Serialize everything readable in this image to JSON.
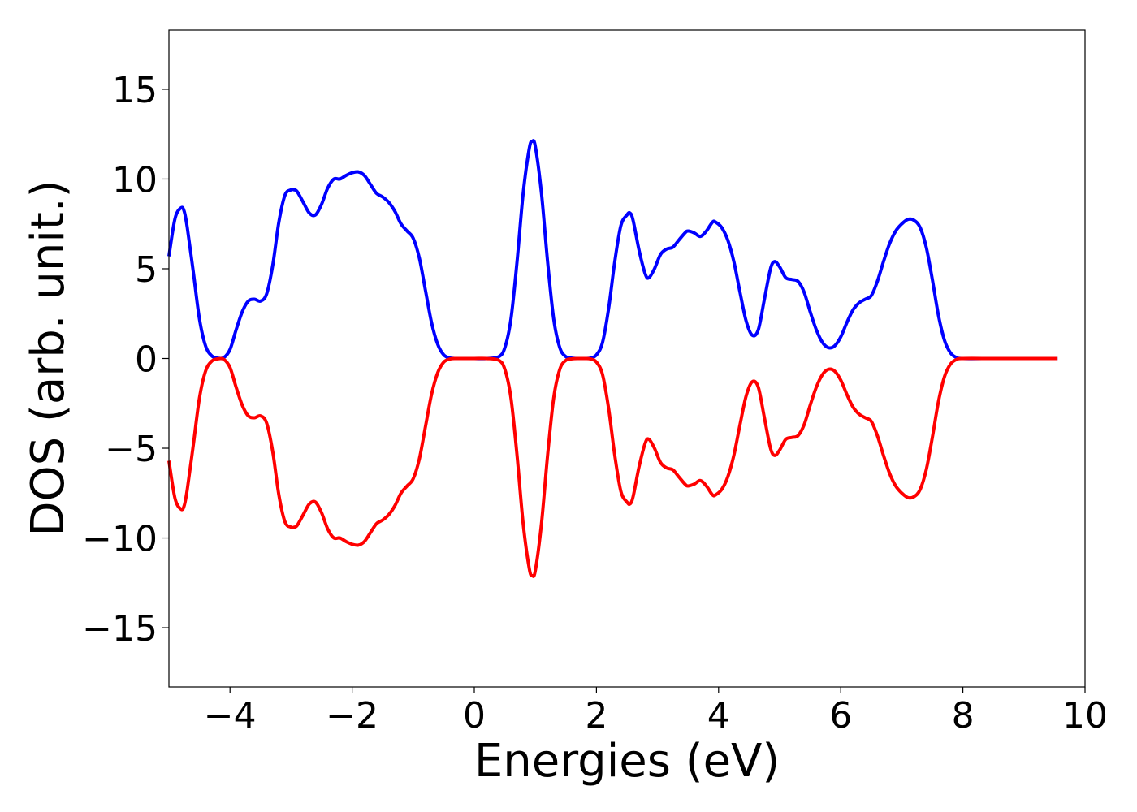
{
  "chart_data": {
    "type": "line",
    "title": "",
    "xlabel": "Energies (eV)",
    "ylabel": "DOS (arb. unit.)",
    "xlim": [
      -5,
      10
    ],
    "ylim": [
      -18.3,
      18.3
    ],
    "grid": false,
    "legend": "none",
    "x_ticks": [
      -4,
      -2,
      0,
      2,
      4,
      6,
      8,
      10
    ],
    "x_tick_labels": [
      "−4",
      "−2",
      "0",
      "2",
      "4",
      "6",
      "8",
      "10"
    ],
    "y_ticks": [
      15,
      10,
      5,
      0,
      -5,
      -10,
      -15
    ],
    "y_tick_labels": [
      "15",
      "10",
      "5",
      "0",
      "−5",
      "−10",
      "−15"
    ],
    "series": [
      {
        "color": "#0000ff",
        "x": [
          -5.0,
          -4.9,
          -4.8,
          -4.75,
          -4.7,
          -4.6,
          -4.5,
          -4.4,
          -4.3,
          -4.2,
          -4.1,
          -4.0,
          -3.9,
          -3.8,
          -3.7,
          -3.6,
          -3.5,
          -3.4,
          -3.3,
          -3.2,
          -3.1,
          -3.0,
          -2.95,
          -2.9,
          -2.8,
          -2.7,
          -2.6,
          -2.5,
          -2.4,
          -2.3,
          -2.2,
          -2.1,
          -2.0,
          -1.9,
          -1.8,
          -1.7,
          -1.6,
          -1.5,
          -1.4,
          -1.3,
          -1.2,
          -1.1,
          -1.0,
          -0.9,
          -0.8,
          -0.7,
          -0.6,
          -0.5,
          -0.4,
          -0.3,
          -0.2,
          0.0,
          0.2,
          0.4,
          0.5,
          0.6,
          0.7,
          0.8,
          0.9,
          0.95,
          1.0,
          1.1,
          1.2,
          1.3,
          1.4,
          1.5,
          1.6,
          1.7,
          1.8,
          1.9,
          2.0,
          2.1,
          2.2,
          2.3,
          2.4,
          2.5,
          2.55,
          2.6,
          2.7,
          2.8,
          2.86,
          2.95,
          3.05,
          3.15,
          3.25,
          3.35,
          3.45,
          3.5,
          3.6,
          3.7,
          3.8,
          3.9,
          3.95,
          4.05,
          4.15,
          4.25,
          4.35,
          4.45,
          4.55,
          4.65,
          4.75,
          4.85,
          4.92,
          5.0,
          5.1,
          5.2,
          5.3,
          5.4,
          5.5,
          5.6,
          5.7,
          5.8,
          5.9,
          6.0,
          6.1,
          6.2,
          6.3,
          6.4,
          6.5,
          6.6,
          6.7,
          6.8,
          6.9,
          7.0,
          7.1,
          7.2,
          7.3,
          7.4,
          7.5,
          7.6,
          7.7,
          7.8,
          7.9,
          8.0,
          8.5,
          9.0,
          9.55
        ],
        "y": [
          5.7,
          7.8,
          8.4,
          8.2,
          7.3,
          4.8,
          2.2,
          0.7,
          0.15,
          0.02,
          0.05,
          0.5,
          1.6,
          2.6,
          3.2,
          3.3,
          3.2,
          3.6,
          5.2,
          7.6,
          9.1,
          9.4,
          9.4,
          9.3,
          8.7,
          8.1,
          8.0,
          8.6,
          9.5,
          10.0,
          10.0,
          10.2,
          10.35,
          10.4,
          10.2,
          9.7,
          9.2,
          9.0,
          8.7,
          8.2,
          7.5,
          7.1,
          6.7,
          5.6,
          3.8,
          2.0,
          0.8,
          0.2,
          0.03,
          0.0,
          0.0,
          0.0,
          0.0,
          0.1,
          0.6,
          2.2,
          5.4,
          9.2,
          11.7,
          12.1,
          11.8,
          9.2,
          5.4,
          2.2,
          0.6,
          0.1,
          0.02,
          0.0,
          0.0,
          0.02,
          0.2,
          0.9,
          2.8,
          5.4,
          7.4,
          8.0,
          8.1,
          7.7,
          6.0,
          4.7,
          4.5,
          5.0,
          5.8,
          6.1,
          6.2,
          6.6,
          7.0,
          7.1,
          7.0,
          6.8,
          7.1,
          7.6,
          7.6,
          7.3,
          6.6,
          5.4,
          3.7,
          2.1,
          1.3,
          1.6,
          3.3,
          5.0,
          5.4,
          5.1,
          4.5,
          4.4,
          4.3,
          3.7,
          2.6,
          1.6,
          0.9,
          0.6,
          0.7,
          1.2,
          2.0,
          2.7,
          3.1,
          3.3,
          3.5,
          4.3,
          5.4,
          6.4,
          7.1,
          7.5,
          7.75,
          7.7,
          7.3,
          6.2,
          4.4,
          2.4,
          1.0,
          0.3,
          0.05,
          0.0,
          0.0,
          0.0,
          0.0
        ]
      },
      {
        "color": "#ff0000",
        "x": [
          -5.0,
          -4.9,
          -4.8,
          -4.75,
          -4.7,
          -4.6,
          -4.5,
          -4.4,
          -4.3,
          -4.2,
          -4.1,
          -4.0,
          -3.9,
          -3.8,
          -3.7,
          -3.6,
          -3.5,
          -3.4,
          -3.3,
          -3.2,
          -3.1,
          -3.0,
          -2.95,
          -2.9,
          -2.8,
          -2.7,
          -2.6,
          -2.5,
          -2.4,
          -2.3,
          -2.2,
          -2.1,
          -2.0,
          -1.9,
          -1.8,
          -1.7,
          -1.6,
          -1.5,
          -1.4,
          -1.3,
          -1.2,
          -1.1,
          -1.0,
          -0.9,
          -0.8,
          -0.7,
          -0.6,
          -0.5,
          -0.4,
          -0.3,
          -0.2,
          0.0,
          0.2,
          0.4,
          0.5,
          0.6,
          0.7,
          0.8,
          0.9,
          0.95,
          1.0,
          1.1,
          1.2,
          1.3,
          1.4,
          1.5,
          1.6,
          1.7,
          1.8,
          1.9,
          2.0,
          2.1,
          2.2,
          2.3,
          2.4,
          2.5,
          2.55,
          2.6,
          2.7,
          2.8,
          2.86,
          2.95,
          3.05,
          3.15,
          3.25,
          3.35,
          3.45,
          3.5,
          3.6,
          3.7,
          3.8,
          3.9,
          3.95,
          4.05,
          4.15,
          4.25,
          4.35,
          4.45,
          4.55,
          4.65,
          4.75,
          4.85,
          4.92,
          5.0,
          5.1,
          5.2,
          5.3,
          5.4,
          5.5,
          5.6,
          5.7,
          5.8,
          5.9,
          6.0,
          6.1,
          6.2,
          6.3,
          6.4,
          6.5,
          6.6,
          6.7,
          6.8,
          6.9,
          7.0,
          7.1,
          7.2,
          7.3,
          7.4,
          7.5,
          7.6,
          7.7,
          7.8,
          7.9,
          8.0,
          8.5,
          9.0,
          9.55
        ],
        "y": [
          -5.7,
          -7.8,
          -8.4,
          -8.2,
          -7.3,
          -4.8,
          -2.2,
          -0.7,
          -0.15,
          -0.02,
          -0.05,
          -0.5,
          -1.6,
          -2.6,
          -3.2,
          -3.3,
          -3.2,
          -3.6,
          -5.2,
          -7.6,
          -9.1,
          -9.4,
          -9.4,
          -9.3,
          -8.7,
          -8.1,
          -8.0,
          -8.6,
          -9.5,
          -10.0,
          -10.0,
          -10.2,
          -10.35,
          -10.4,
          -10.2,
          -9.7,
          -9.2,
          -9.0,
          -8.7,
          -8.2,
          -7.5,
          -7.1,
          -6.7,
          -5.6,
          -3.8,
          -2.0,
          -0.8,
          -0.2,
          -0.03,
          0.0,
          0.0,
          0.0,
          0.0,
          -0.1,
          -0.6,
          -2.2,
          -5.4,
          -9.2,
          -11.7,
          -12.1,
          -11.8,
          -9.2,
          -5.4,
          -2.2,
          -0.6,
          -0.1,
          -0.02,
          0.0,
          0.0,
          -0.02,
          -0.2,
          -0.9,
          -2.8,
          -5.4,
          -7.4,
          -8.0,
          -8.1,
          -7.7,
          -6.0,
          -4.7,
          -4.5,
          -5.0,
          -5.8,
          -6.1,
          -6.2,
          -6.6,
          -7.0,
          -7.1,
          -7.0,
          -6.8,
          -7.1,
          -7.6,
          -7.6,
          -7.3,
          -6.6,
          -5.4,
          -3.7,
          -2.1,
          -1.3,
          -1.6,
          -3.3,
          -5.0,
          -5.4,
          -5.1,
          -4.5,
          -4.4,
          -4.3,
          -3.7,
          -2.6,
          -1.6,
          -0.9,
          -0.6,
          -0.7,
          -1.2,
          -2.0,
          -2.7,
          -3.1,
          -3.3,
          -3.5,
          -4.3,
          -5.4,
          -6.4,
          -7.1,
          -7.5,
          -7.75,
          -7.7,
          -7.3,
          -6.2,
          -4.4,
          -2.4,
          -1.0,
          -0.3,
          -0.05,
          0.0,
          0.0,
          0.0,
          0.0
        ]
      }
    ]
  }
}
